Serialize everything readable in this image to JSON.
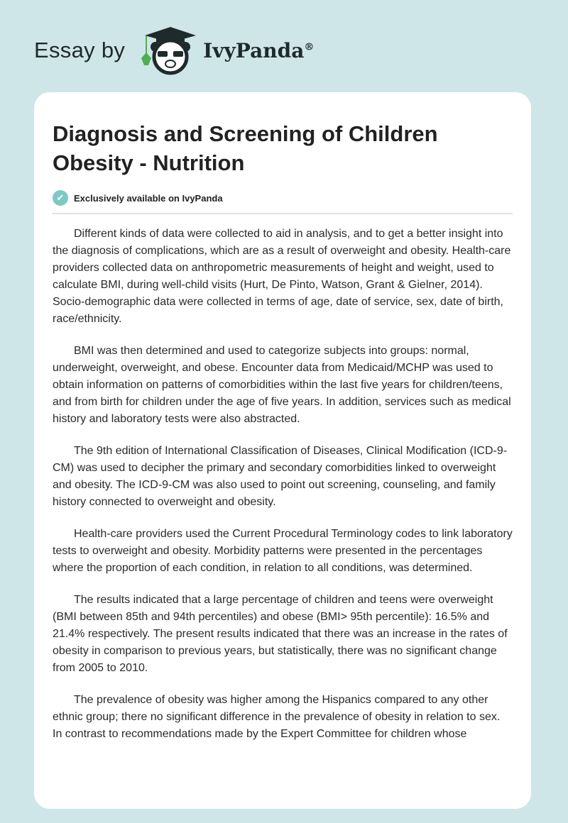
{
  "header": {
    "essay_by": "Essay by",
    "brand": "IvyPanda",
    "registered": "®"
  },
  "article": {
    "title": "Diagnosis and Screening of Children Obesity - Nutrition",
    "badge": "Exclusively available on IvyPanda",
    "paragraphs": [
      "Different kinds of data were collected to aid in analysis, and to get a better insight into the diagnosis of complications, which are as a result of overweight and obesity. Health-care providers collected data on anthropometric measurements of height and weight, used to calculate BMI, during well-child visits (Hurt, De Pinto, Watson, Grant & Gielner, 2014). Socio-demographic data were collected in terms of age, date of service, sex, date of birth, race/ethnicity.",
      "BMI was then determined and used to categorize subjects into groups: normal, underweight, overweight, and obese. Encounter data from Medicaid/MCHP was used to obtain information on patterns of comorbidities within the last five years for children/teens, and from birth for children under the age of five years. In addition, services such as medical history and laboratory tests were also abstracted.",
      "The 9th edition of International Classification of Diseases, Clinical Modification (ICD-9-CM) was used to decipher the primary and secondary comorbidities linked to overweight and obesity. The ICD-9-CM was also used to point out screening, counseling, and family history connected to overweight and obesity.",
      "Health-care providers used the Current Procedural Terminology codes to link laboratory tests to overweight and obesity. Morbidity patterns were presented in the percentages where the proportion of each condition, in relation to all conditions, was determined.",
      "The results indicated that a large percentage of children and teens were overweight (BMI between 85th and 94th percentiles) and obese (BMI> 95th percentile): 16.5% and 21.4% respectively. The present results indicated that there was an increase in the rates of obesity in comparison to previous years, but statistically, there was no significant change from 2005 to 2010.",
      "The prevalence of obesity was higher among the Hispanics compared to any other ethnic group; there no significant difference in the prevalence of obesity in relation to sex. In contrast to recommendations made by the Expert Committee for children whose"
    ]
  },
  "colors": {
    "background": "#cfe6e8",
    "check": "#7ccac3",
    "ivy": "#4caf50"
  }
}
